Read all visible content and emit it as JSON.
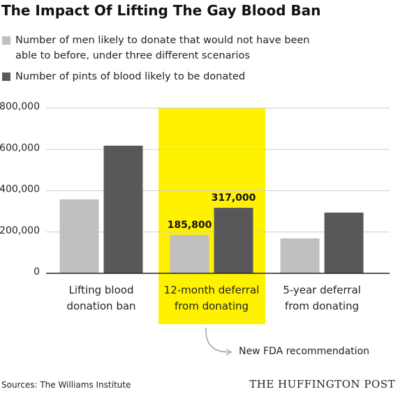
{
  "chart_data": {
    "type": "bar",
    "title": "The Impact Of Lifting The Gay Blood Ban",
    "categories": [
      "Lifting blood donation ban",
      "12-month deferral from donating",
      "5-year deferral from donating"
    ],
    "series": [
      {
        "name": "Number of men likely to donate that would not have been able to before, under three different scenarios",
        "color": "#c0c0c2",
        "values": [
          358000,
          185800,
          169000
        ],
        "value_labels": [
          null,
          "185,800",
          null
        ]
      },
      {
        "name": "Number of pints of blood likely to be donated",
        "color": "#58585a",
        "values": [
          618000,
          317000,
          294000
        ],
        "value_labels": [
          null,
          "317,000",
          null
        ]
      }
    ],
    "ylim": [
      0,
      800000
    ],
    "yticks": [
      0,
      {
        "value": 200000,
        "label": "200,000"
      },
      {
        "value": 400000,
        "label": "400,000"
      },
      {
        "value": 600000,
        "label": "600,000"
      },
      {
        "value": 800000,
        "label": "800,000"
      }
    ],
    "grid": true,
    "highlight_color": "#fff200",
    "annotation": "New FDA recommendation",
    "source": "Sources: The Williams Institute",
    "publisher": "THE HUFFINGTON POST"
  }
}
